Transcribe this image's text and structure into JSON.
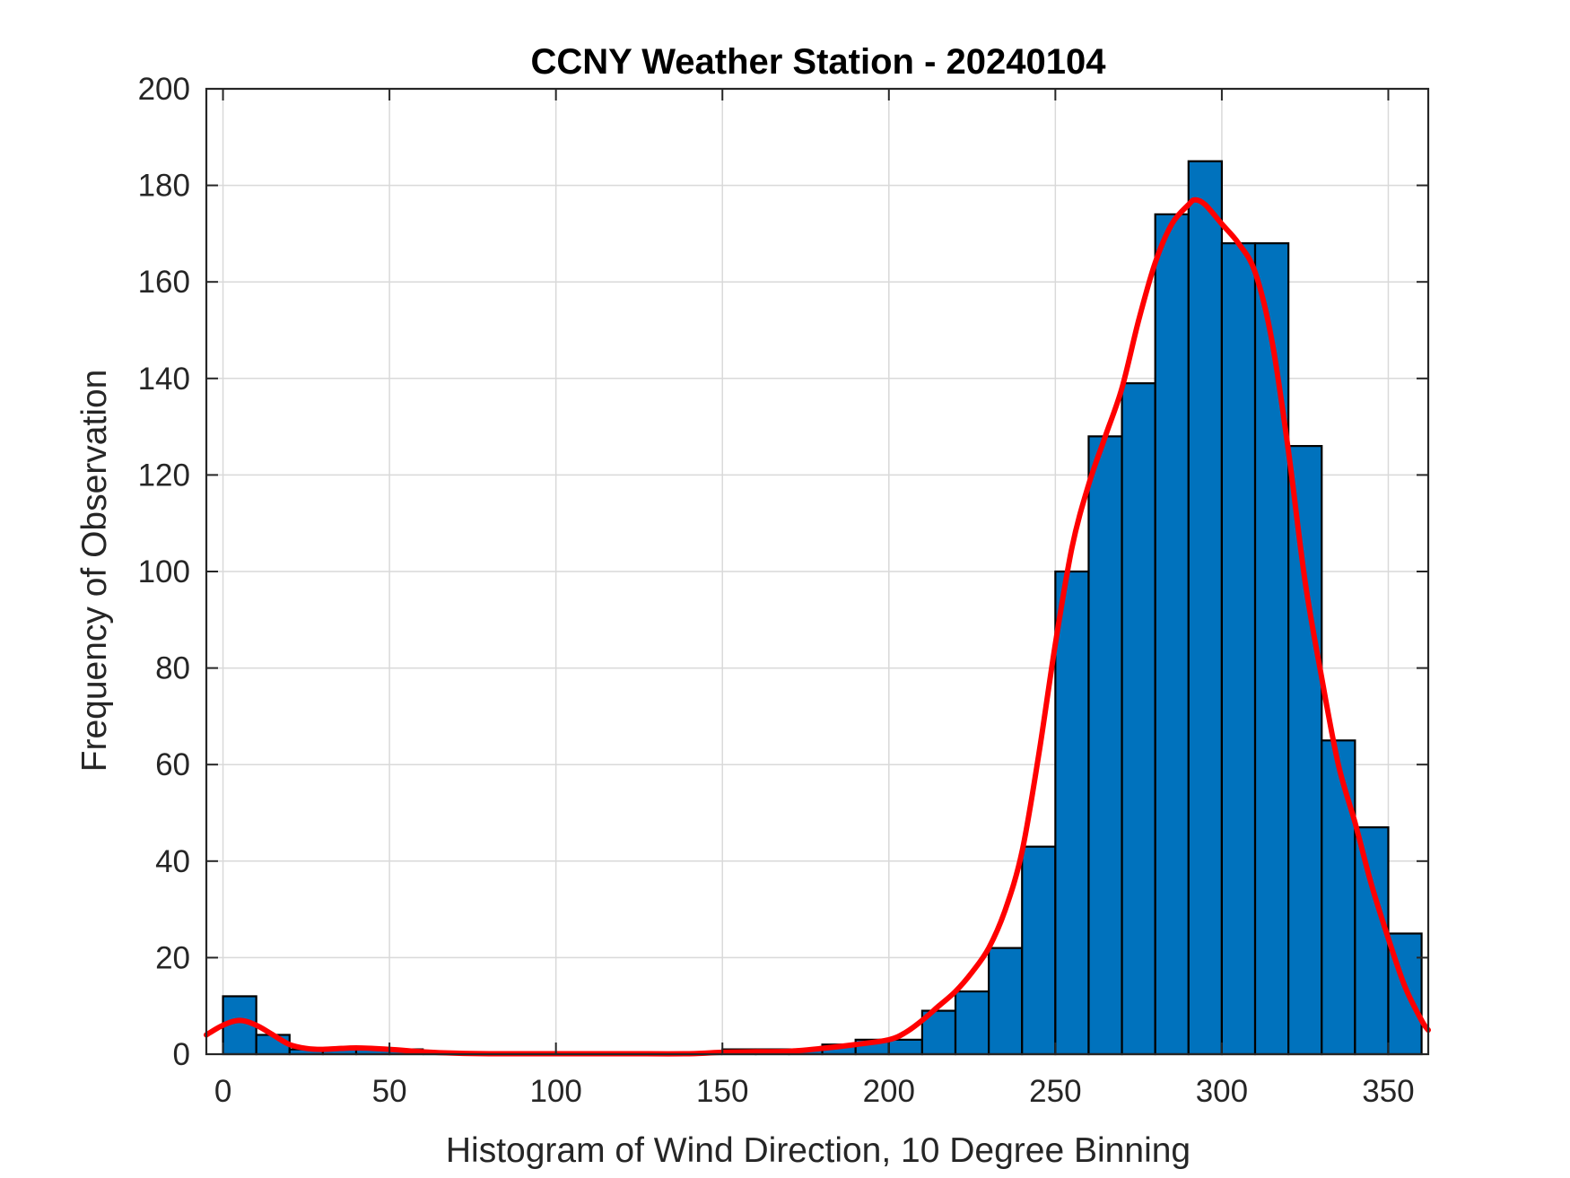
{
  "chart_data": {
    "type": "bar",
    "title": "CCNY Weather Station - 20240104",
    "xlabel": "Histogram of Wind Direction, 10 Degree Binning",
    "ylabel": "Frequency of Observation",
    "xlim": [
      -5,
      362
    ],
    "ylim": [
      0,
      200
    ],
    "xticks": [
      0,
      50,
      100,
      150,
      200,
      250,
      300,
      350
    ],
    "yticks": [
      0,
      20,
      40,
      60,
      80,
      100,
      120,
      140,
      160,
      180,
      200
    ],
    "grid": true,
    "bin_width": 10,
    "bins": [
      {
        "start": 0,
        "count": 12
      },
      {
        "start": 10,
        "count": 4
      },
      {
        "start": 20,
        "count": 1
      },
      {
        "start": 30,
        "count": 1
      },
      {
        "start": 40,
        "count": 1
      },
      {
        "start": 50,
        "count": 1
      },
      {
        "start": 60,
        "count": 0
      },
      {
        "start": 70,
        "count": 0
      },
      {
        "start": 80,
        "count": 0
      },
      {
        "start": 90,
        "count": 0
      },
      {
        "start": 100,
        "count": 0
      },
      {
        "start": 110,
        "count": 0
      },
      {
        "start": 120,
        "count": 0
      },
      {
        "start": 130,
        "count": 0
      },
      {
        "start": 140,
        "count": 0
      },
      {
        "start": 150,
        "count": 1
      },
      {
        "start": 160,
        "count": 1
      },
      {
        "start": 170,
        "count": 1
      },
      {
        "start": 180,
        "count": 2
      },
      {
        "start": 190,
        "count": 3
      },
      {
        "start": 200,
        "count": 3
      },
      {
        "start": 210,
        "count": 9
      },
      {
        "start": 220,
        "count": 13
      },
      {
        "start": 230,
        "count": 22
      },
      {
        "start": 240,
        "count": 43
      },
      {
        "start": 250,
        "count": 100
      },
      {
        "start": 260,
        "count": 128
      },
      {
        "start": 270,
        "count": 139
      },
      {
        "start": 280,
        "count": 174
      },
      {
        "start": 290,
        "count": 185
      },
      {
        "start": 300,
        "count": 168
      },
      {
        "start": 310,
        "count": 168
      },
      {
        "start": 320,
        "count": 126
      },
      {
        "start": 330,
        "count": 65
      },
      {
        "start": 340,
        "count": 47
      },
      {
        "start": 350,
        "count": 25
      }
    ],
    "fit_curve": {
      "x": [
        -5,
        0,
        5,
        10,
        15,
        20,
        25,
        30,
        40,
        50,
        60,
        70,
        80,
        100,
        120,
        140,
        150,
        160,
        170,
        180,
        190,
        200,
        205,
        210,
        215,
        220,
        225,
        230,
        235,
        240,
        245,
        250,
        255,
        260,
        265,
        270,
        275,
        280,
        285,
        290,
        292,
        295,
        300,
        305,
        310,
        315,
        320,
        325,
        330,
        335,
        340,
        345,
        350,
        355,
        360,
        362
      ],
      "y": [
        4,
        6,
        7,
        6,
        4,
        2,
        1.2,
        1,
        1.3,
        1,
        0.5,
        0.2,
        0.1,
        0.1,
        0.1,
        0.1,
        0.4,
        0.5,
        0.6,
        1.2,
        2,
        3,
        4.5,
        7,
        10,
        13,
        17,
        22,
        30,
        42,
        62,
        85,
        105,
        118,
        128,
        138,
        152,
        164,
        172,
        176,
        177,
        176,
        172,
        168,
        162,
        148,
        125,
        98,
        78,
        60,
        48,
        35,
        24,
        14,
        7,
        5
      ]
    },
    "colors": {
      "bar_fill": "#0072bd",
      "bar_edge": "#000000",
      "fit_line": "#ff0000",
      "grid": "#d9d9d9",
      "axis": "#262626"
    }
  }
}
